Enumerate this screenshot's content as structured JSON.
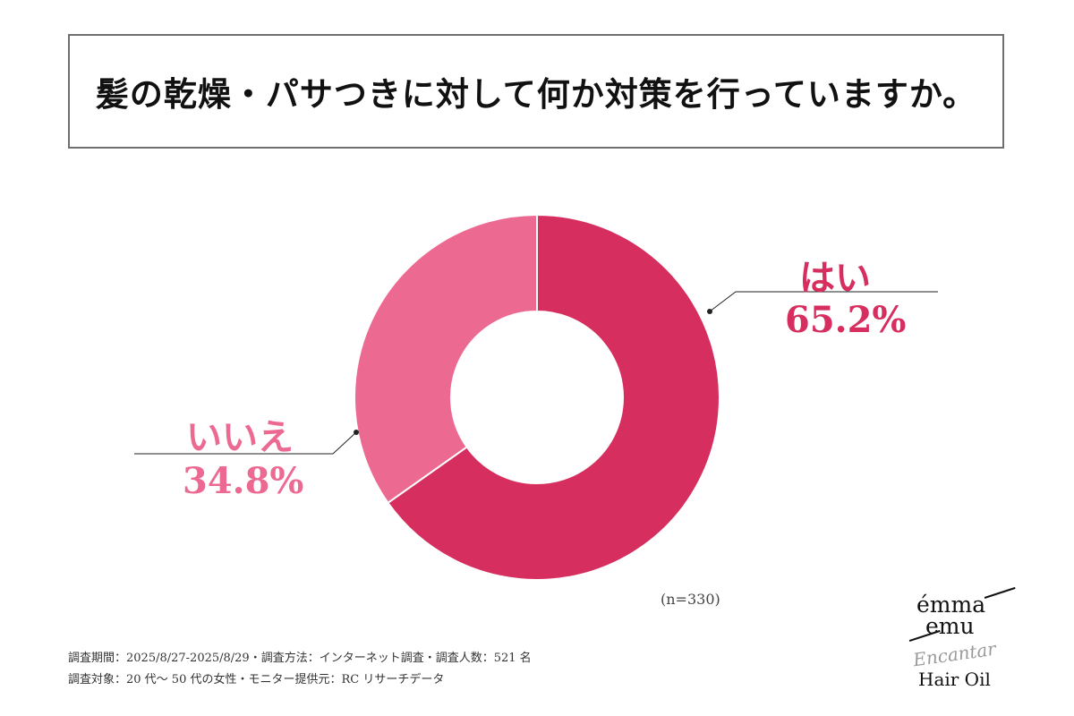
{
  "title": "髪の乾燥・パサつきに対して何か対策を行っていますか。",
  "chart_data": {
    "type": "pie",
    "donut": true,
    "title": "髪の乾燥・パサつきに対して何か対策を行っていますか。",
    "categories": [
      "はい",
      "いいえ"
    ],
    "values": [
      65.2,
      34.8
    ],
    "value_labels": [
      "65.2%",
      "34.8%"
    ],
    "colors": [
      "#d62e5e",
      "#ec6a92"
    ],
    "sample_size": "(n=330)"
  },
  "labels": {
    "yes_name": "はい",
    "yes_pct": "65.2%",
    "no_name": "いいえ",
    "no_pct": "34.8%"
  },
  "sample": "(n=330)",
  "footnotes": {
    "line1": "調査期間：2025/8/27-2025/8/29・調査方法：インターネット調査・調査人数：521 名",
    "line2": "調査対象：20 代～ 50 代の女性・モニター提供元：RC リサーチデータ"
  },
  "logo": {
    "line1": "émma",
    "line2": "emu",
    "script": "Encantar",
    "product": "Hair Oil"
  }
}
